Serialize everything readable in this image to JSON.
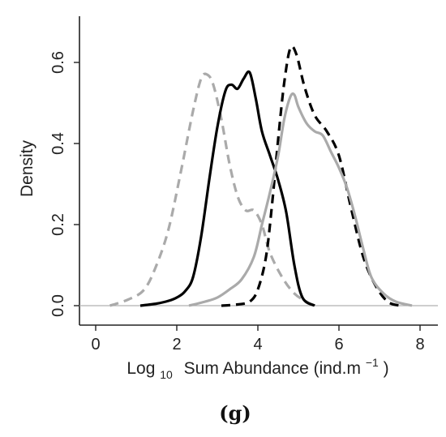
{
  "panel_label": "(g)",
  "chart_data": {
    "type": "line",
    "title": "",
    "xlabel": {
      "base": "Log",
      "subscript": "10",
      "main": "Sum Abundance (ind.m",
      "superscript": "−1",
      "close": ")"
    },
    "ylabel": "Density",
    "xlim": [
      0,
      8
    ],
    "ylim": [
      0,
      0.7
    ],
    "x_ticks": [
      "0",
      "2",
      "4",
      "6",
      "8"
    ],
    "y_ticks": [
      "0.0",
      "0.2",
      "0.4",
      "0.6"
    ],
    "grid": false,
    "legend": "none",
    "baseline": {
      "y": 0,
      "color": "#b0b0b0"
    },
    "series": [
      {
        "color": "#aaaaaa",
        "dash": "dashed",
        "x": [
          0.35,
          0.8,
          1.2,
          1.5,
          1.8,
          2.1,
          2.4,
          2.6,
          2.75,
          2.9,
          3.1,
          3.3,
          3.5,
          3.7,
          3.9,
          4.1,
          4.3,
          4.6,
          4.9,
          5.2,
          5.4
        ],
        "y": [
          0.0,
          0.015,
          0.04,
          0.1,
          0.19,
          0.33,
          0.48,
          0.56,
          0.57,
          0.545,
          0.46,
          0.35,
          0.27,
          0.235,
          0.235,
          0.2,
          0.13,
          0.07,
          0.03,
          0.01,
          0.0
        ]
      },
      {
        "color": "#000000",
        "dash": "solid",
        "x": [
          1.1,
          1.5,
          1.8,
          2.0,
          2.2,
          2.4,
          2.6,
          2.8,
          3.0,
          3.2,
          3.35,
          3.5,
          3.65,
          3.8,
          3.95,
          4.1,
          4.3,
          4.5,
          4.7,
          4.9,
          5.1,
          5.4
        ],
        "y": [
          0.0,
          0.005,
          0.012,
          0.02,
          0.035,
          0.07,
          0.17,
          0.31,
          0.44,
          0.53,
          0.545,
          0.535,
          0.56,
          0.575,
          0.51,
          0.43,
          0.37,
          0.31,
          0.23,
          0.1,
          0.02,
          0.0
        ]
      },
      {
        "color": "#000000",
        "dash": "dashed",
        "x": [
          3.1,
          3.5,
          3.8,
          4.0,
          4.2,
          4.35,
          4.5,
          4.65,
          4.8,
          4.95,
          5.15,
          5.4,
          5.7,
          6.0,
          6.3,
          6.6,
          6.9,
          7.2,
          7.5
        ],
        "y": [
          0.0,
          0.003,
          0.01,
          0.04,
          0.12,
          0.25,
          0.41,
          0.55,
          0.635,
          0.62,
          0.54,
          0.47,
          0.43,
          0.37,
          0.24,
          0.12,
          0.05,
          0.01,
          0.0
        ]
      },
      {
        "color": "#aaaaaa",
        "dash": "solid",
        "x": [
          2.3,
          2.7,
          3.0,
          3.3,
          3.6,
          3.9,
          4.1,
          4.3,
          4.5,
          4.65,
          4.8,
          4.9,
          5.0,
          5.2,
          5.4,
          5.6,
          5.8,
          6.0,
          6.2,
          6.4,
          6.6,
          6.8,
          7.1,
          7.4,
          7.8
        ],
        "y": [
          0.0,
          0.01,
          0.02,
          0.04,
          0.065,
          0.12,
          0.2,
          0.28,
          0.37,
          0.46,
          0.515,
          0.52,
          0.49,
          0.45,
          0.43,
          0.42,
          0.38,
          0.34,
          0.29,
          0.22,
          0.14,
          0.07,
          0.03,
          0.01,
          0.0
        ]
      }
    ]
  }
}
